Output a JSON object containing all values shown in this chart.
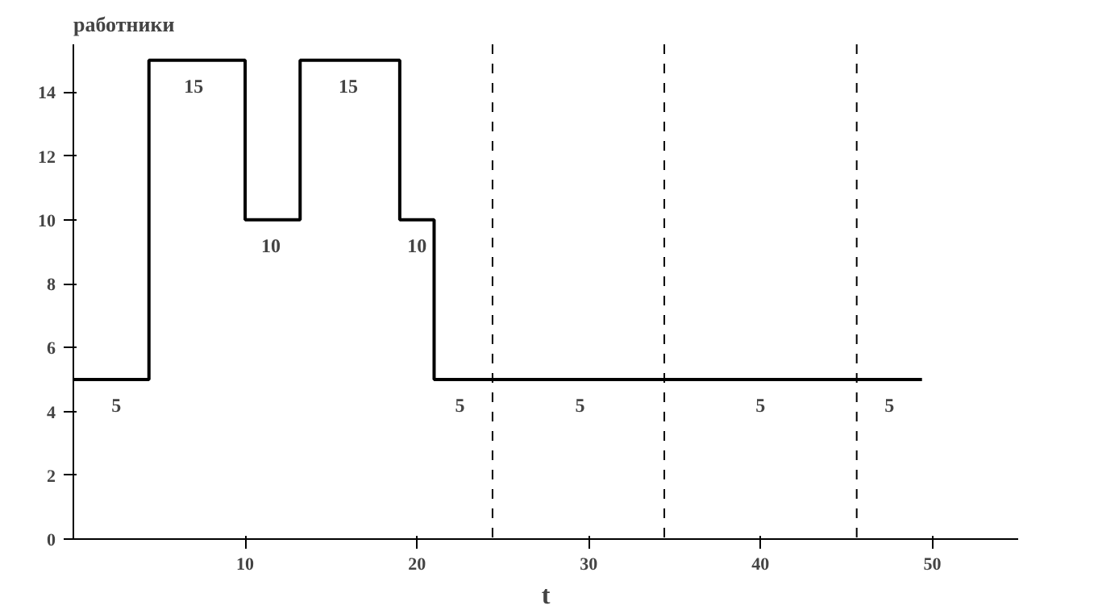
{
  "chart_data": {
    "type": "step",
    "ylabel": "работники",
    "xlabel": "t",
    "x": [
      0,
      2.5,
      4.4,
      7,
      10,
      11.5,
      13.2,
      16,
      19,
      20,
      21,
      22.5,
      24.4,
      29.5,
      34.4,
      40,
      45.6,
      47.5,
      49.4
    ],
    "series": [
      {
        "color": "#000000",
        "values": [
          5,
          5,
          15,
          15,
          10,
          10,
          15,
          15,
          10,
          10,
          5,
          5,
          5,
          5,
          5,
          5,
          5,
          5,
          5
        ],
        "value_labels": [
          null,
          "5",
          null,
          "15",
          null,
          "10",
          null,
          "15",
          null,
          "10",
          null,
          "5",
          null,
          "5",
          null,
          "5",
          null,
          "5",
          null
        ]
      }
    ],
    "xlim": [
      0,
      55
    ],
    "ylim": [
      0,
      15.5
    ],
    "xticks": [
      10,
      20,
      30,
      40,
      50
    ],
    "yticks": [
      0,
      2,
      4,
      6,
      8,
      10,
      12,
      14
    ],
    "grid": false,
    "line_style": "solid",
    "ref_lines": [
      {
        "axis": "x",
        "value": 24.4,
        "line_style": "dashed",
        "color": "#000000"
      },
      {
        "axis": "x",
        "value": 34.4,
        "line_style": "dashed",
        "color": "#000000"
      },
      {
        "axis": "x",
        "value": 45.6,
        "line_style": "dashed",
        "color": "#000000"
      }
    ]
  }
}
